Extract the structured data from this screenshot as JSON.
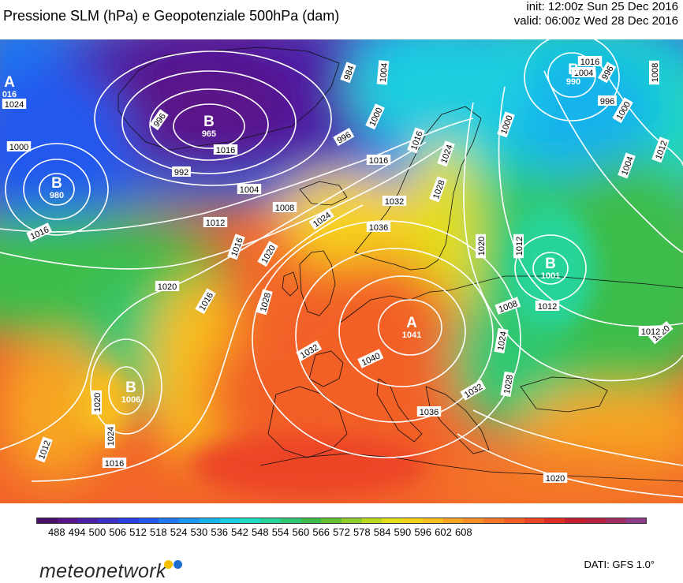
{
  "title": "Pressione SLM (hPa) e Geopotenziale 500hPa (dam)",
  "run": {
    "init": "init: 12:00z Sun 25 Dec 2016",
    "valid": "valid: 06:00z Wed 28 Dec 2016"
  },
  "legend": {
    "colors": [
      "#4a0e6b",
      "#5a1489",
      "#4b1fa8",
      "#3a2ec6",
      "#2a3fe0",
      "#2359ee",
      "#1e78f2",
      "#1a95f0",
      "#16b3ec",
      "#1bcde0",
      "#1fd9c2",
      "#25d49a",
      "#2ec872",
      "#3cbd4b",
      "#62c232",
      "#8fcd2a",
      "#bcd821",
      "#e3dd1a",
      "#f6d21c",
      "#f8bd1f",
      "#f7a523",
      "#f68f25",
      "#f47827",
      "#f26028",
      "#ec4527",
      "#de2f26",
      "#c81f30",
      "#b7223f",
      "#a32c63",
      "#8f3b8a"
    ],
    "ticks": [
      "488",
      "494",
      "500",
      "506",
      "512",
      "518",
      "524",
      "530",
      "536",
      "542",
      "548",
      "554",
      "560",
      "566",
      "572",
      "578",
      "584",
      "590",
      "596",
      "602",
      "608"
    ]
  },
  "pressure_centers": [
    {
      "letter": "A",
      "value": "016"
    },
    {
      "letter": "B",
      "value": "965"
    },
    {
      "letter": "B",
      "value": "980"
    },
    {
      "letter": "B",
      "value": "990"
    },
    {
      "letter": "B",
      "value": "1001"
    },
    {
      "letter": "A",
      "value": "1041"
    },
    {
      "letter": "B",
      "value": "1006"
    }
  ],
  "isobar_labels": [
    "984",
    "996",
    "1004",
    "1000",
    "996",
    "992",
    "1000",
    "1004",
    "1008",
    "1000",
    "996",
    "1016",
    "1016",
    "1012",
    "1024",
    "1020",
    "1016",
    "1020",
    "1016",
    "1032",
    "1036",
    "1024",
    "1028",
    "1020",
    "1024",
    "1028",
    "1032",
    "1040",
    "1036",
    "1032",
    "1028",
    "1024",
    "1020",
    "1016",
    "1012",
    "1016",
    "1012",
    "1004",
    "996",
    "1008",
    "1000",
    "1004",
    "1012",
    "1016",
    "1008",
    "1012",
    "1020",
    "1012",
    "1020",
    "1016",
    "1024"
  ],
  "footer": {
    "logo_text": "meteonetwork",
    "source": "DATI: GFS 1.0°"
  }
}
